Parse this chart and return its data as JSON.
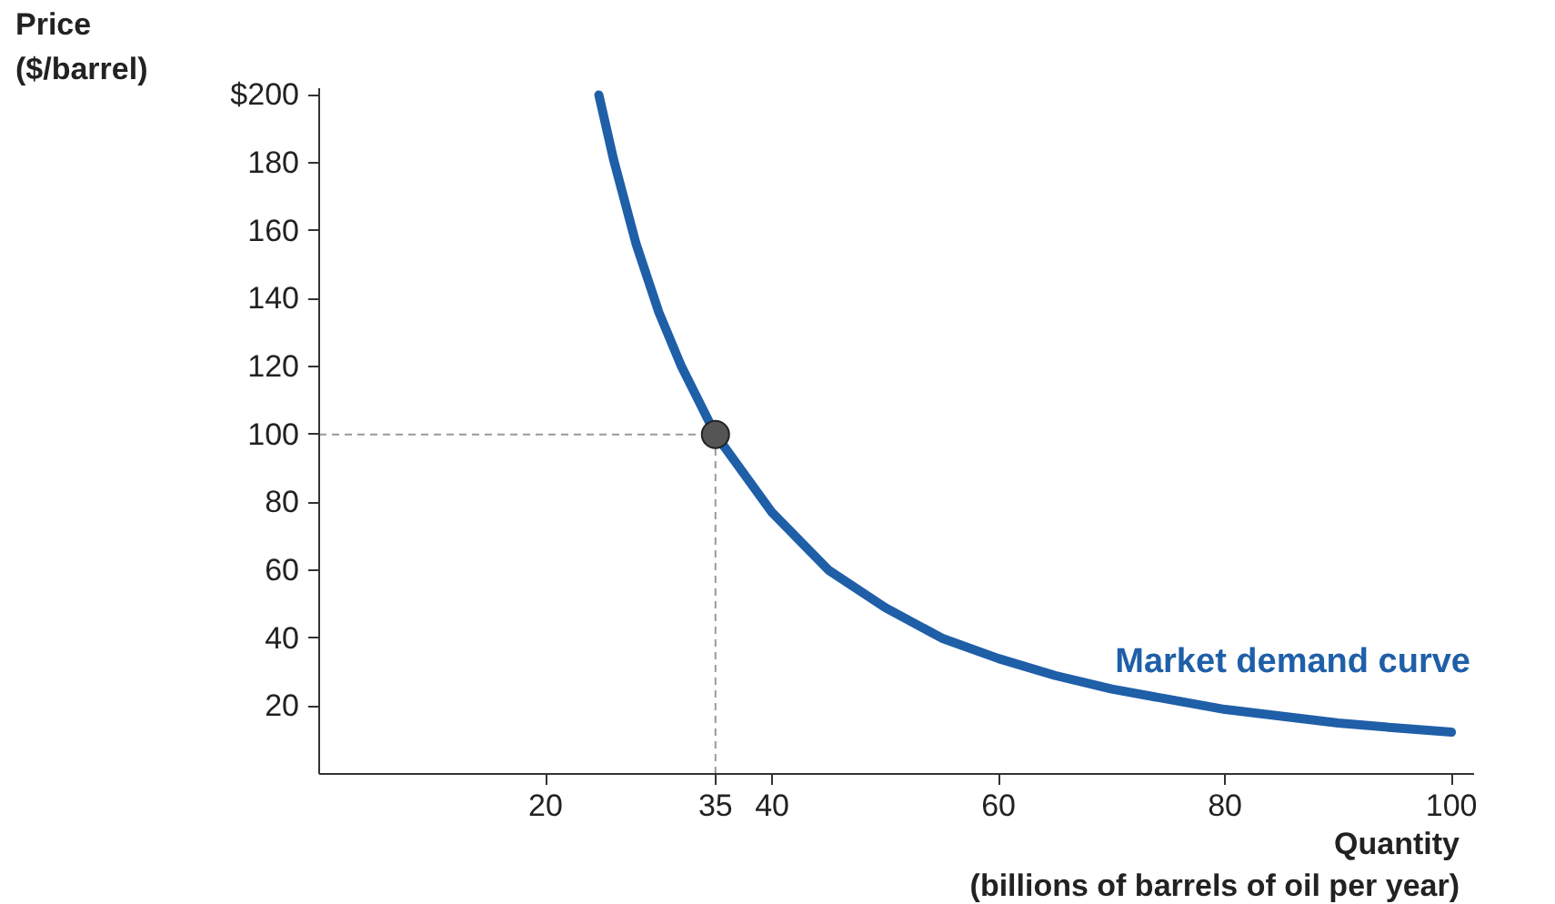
{
  "chart_data": {
    "type": "line",
    "ylabel": "Price\n($/barrel)",
    "xlabel": "Quantity\n(billions of barrels of oil per year)",
    "x": [
      24.7,
      26,
      28,
      30,
      32,
      35,
      40,
      45,
      50,
      55,
      60,
      65,
      70,
      75,
      80,
      85,
      90,
      95,
      100
    ],
    "series": [
      {
        "name": "Market demand curve",
        "color": "#1f5fa8",
        "values": [
          200,
          181,
          156,
          136,
          120,
          100,
          77,
          60,
          49,
          40,
          34,
          29,
          25,
          22,
          19,
          17,
          15,
          13.6,
          12.3
        ]
      },
      {
        "type": "scatter",
        "color": "#555555",
        "marker": "circle",
        "x": [
          35
        ],
        "values": [
          100
        ]
      }
    ],
    "xlim": [
      0,
      102
    ],
    "ylim": [
      0,
      202
    ],
    "xticks": [
      20,
      35,
      40,
      60,
      80,
      100
    ],
    "yticks": [
      20,
      40,
      60,
      80,
      100,
      120,
      140,
      160,
      180,
      {
        "value": 200,
        "label": "$200"
      }
    ],
    "ref_lines": [
      {
        "axis": "x",
        "value": 35,
        "color": "#999999",
        "line_style": "dashed"
      },
      {
        "axis": "y",
        "value": 100,
        "color": "#999999",
        "line_style": "dashed"
      }
    ],
    "grid": false,
    "marker": "none",
    "line_style": "solid"
  }
}
